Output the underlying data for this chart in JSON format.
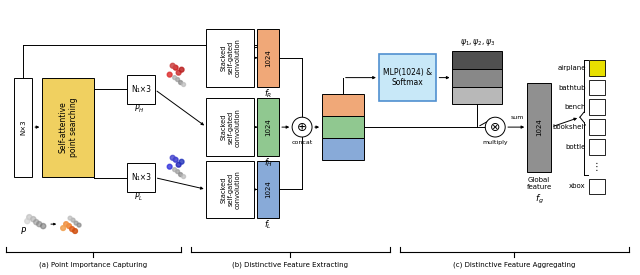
{
  "bg_color": "#ffffff",
  "section_labels": [
    "(a) Point Importance Capturing",
    "(b) Distinctive Feature Extracting",
    "(c) Distinctive Feature Aggregating"
  ],
  "class_labels": [
    "airplane",
    "bathtub",
    "bench",
    "bookshelf",
    "bottle",
    "⋮",
    "xbox"
  ],
  "active_class_color": "#e8e000",
  "inactive_class_color": "white",
  "colors": {
    "yellow": "#f0d060",
    "orange": "#f0a878",
    "green": "#90c890",
    "blue": "#88aad8",
    "mlp_fill": "#c8e8f8",
    "mlp_edge": "#5090d0",
    "gray1": "#505050",
    "gray2": "#888888",
    "gray3": "#b8b8b8",
    "global_gray": "#909090"
  }
}
